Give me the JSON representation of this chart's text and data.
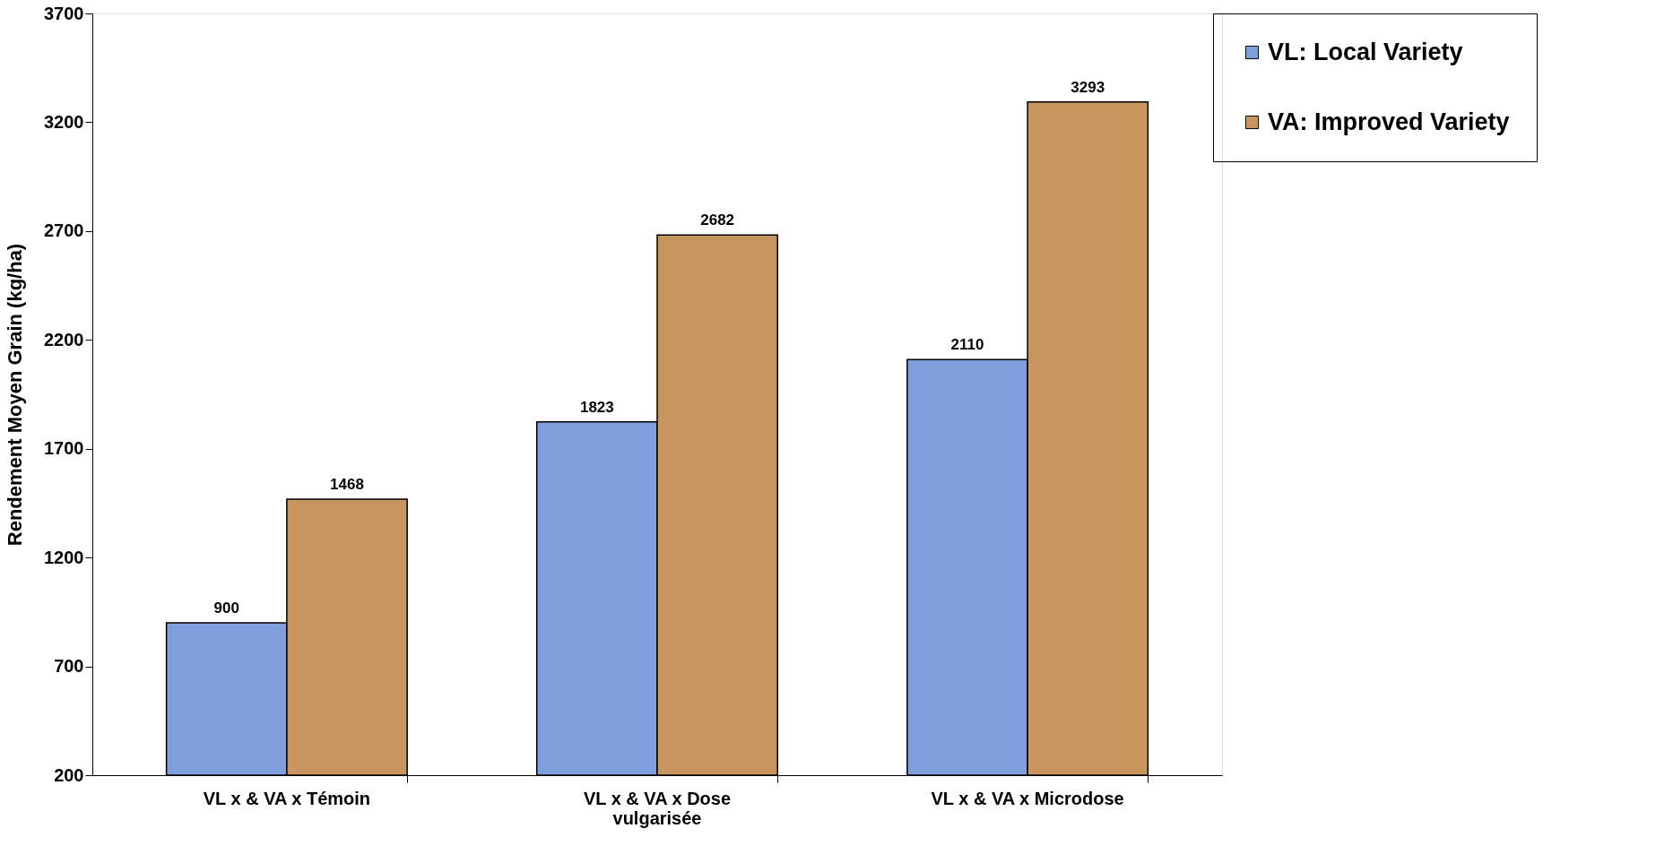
{
  "chart_data": {
    "type": "bar",
    "ylabel": "Rendement Moyen Grain (kg/ha)",
    "categories": [
      "VL x & VA x Témoin",
      "VL x & VA x Dose vulgarisée",
      "VL x & VA x Microdose"
    ],
    "series": [
      {
        "name": "VL: Local Variety",
        "color": "#7f9fdc",
        "values": [
          900,
          1823,
          2110
        ]
      },
      {
        "name": "VA: Improved Variety",
        "color": "#c8955f",
        "values": [
          1468,
          2682,
          3293
        ]
      }
    ],
    "ylim": [
      200,
      3700
    ],
    "yticks": [
      200,
      700,
      1200,
      1700,
      2200,
      2700,
      3200,
      3700
    ],
    "data_labels": true,
    "grid": false,
    "legend": "right"
  }
}
